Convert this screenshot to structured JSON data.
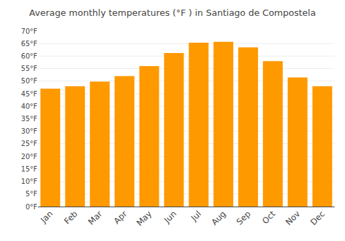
{
  "chart_data": {
    "type": "bar",
    "title": "Average monthly temperatures (°F ) in Santiago de Compostela",
    "categories": [
      "Jan",
      "Feb",
      "Mar",
      "Apr",
      "May",
      "Jun",
      "Jul",
      "Aug",
      "Sep",
      "Oct",
      "Nov",
      "Dec"
    ],
    "values": [
      47.0,
      48.0,
      49.8,
      52.0,
      56.0,
      61.2,
      65.3,
      65.7,
      63.5,
      58.0,
      51.5,
      48.0
    ],
    "color": "#FF9900",
    "ylim": [
      0,
      70
    ],
    "yticks": [
      {
        "value": 0,
        "label": "0°F"
      },
      {
        "value": 5,
        "label": "5°F"
      },
      {
        "value": 10,
        "label": "10°F"
      },
      {
        "value": 15,
        "label": "15°F"
      },
      {
        "value": 20,
        "label": "20°F"
      },
      {
        "value": 25,
        "label": "25°F"
      },
      {
        "value": 30,
        "label": "30°F"
      },
      {
        "value": 35,
        "label": "35°F"
      },
      {
        "value": 40,
        "label": "40°F"
      },
      {
        "value": 45,
        "label": "45°F"
      },
      {
        "value": 50,
        "label": "50°F"
      },
      {
        "value": 55,
        "label": "55°F"
      },
      {
        "value": 60,
        "label": "60°F"
      },
      {
        "value": 65,
        "label": "65°F"
      },
      {
        "value": 70,
        "label": "70°F"
      }
    ],
    "grid": true
  }
}
